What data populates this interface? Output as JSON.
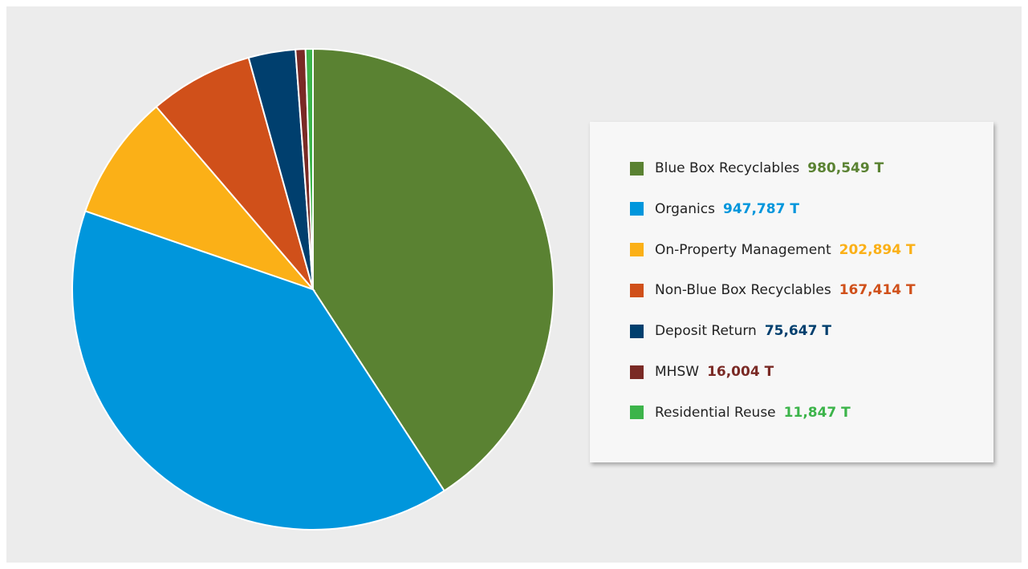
{
  "chart_data": {
    "type": "pie",
    "categories": [
      "Blue Box Recyclables",
      "Organics",
      "On-Property Management",
      "Non-Blue Box Recyclables",
      "Deposit Return",
      "MHSW",
      "Residential Reuse"
    ],
    "values": [
      980549,
      947787,
      202894,
      167414,
      75647,
      16004,
      11847
    ],
    "value_labels": [
      "980,549 T",
      "947,787 T",
      "202,894 T",
      "167,414 T",
      "75,647 T",
      "16,004 T",
      "11,847 T"
    ],
    "colors": [
      "#5a8232",
      "#0096dc",
      "#fbb017",
      "#d0501a",
      "#003f6e",
      "#7a2a25",
      "#3cb44a"
    ]
  }
}
